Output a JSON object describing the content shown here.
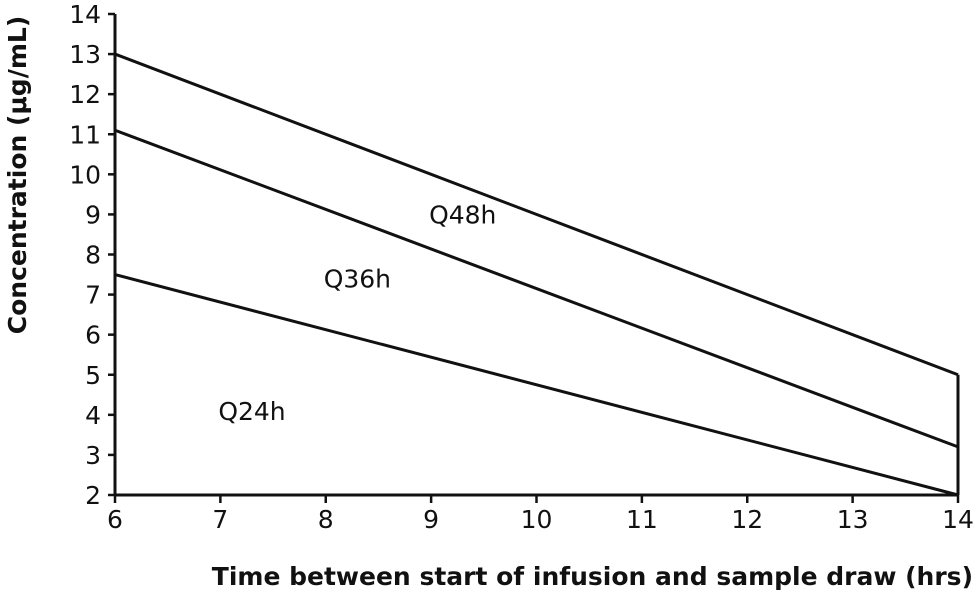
{
  "chart_data": {
    "type": "line",
    "xlabel": "Time between start of infusion and sample draw (hrs)",
    "ylabel": "Concentration (μg/mL)",
    "xlim": [
      6,
      14
    ],
    "ylim": [
      2,
      14
    ],
    "x_ticks": [
      "6",
      "7",
      "8",
      "9",
      "10",
      "11",
      "12",
      "13",
      "14"
    ],
    "y_ticks": [
      "2",
      "3",
      "4",
      "5",
      "6",
      "7",
      "8",
      "9",
      "10",
      "11",
      "12",
      "13",
      "14"
    ],
    "grid": false,
    "legend": "none",
    "series": [
      {
        "name": "Q48h",
        "x": [
          6,
          14
        ],
        "y": [
          13.0,
          5.0
        ],
        "label_at": [
          9.3,
          9.0
        ]
      },
      {
        "name": "Q36h",
        "x": [
          6,
          14
        ],
        "y": [
          11.1,
          3.2
        ],
        "label_at": [
          8.3,
          7.4
        ]
      },
      {
        "name": "Q24h",
        "x": [
          6,
          14
        ],
        "y": [
          7.5,
          2.0
        ],
        "label_at": [
          7.3,
          4.1
        ]
      }
    ]
  }
}
